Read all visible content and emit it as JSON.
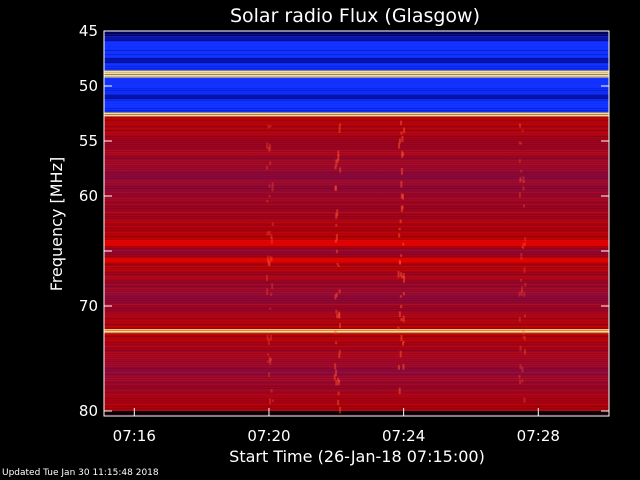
{
  "chart_data": {
    "type": "heatmap",
    "title": "Solar radio Flux (Glasgow)",
    "xlabel": "Start Time (26-Jan-18 07:15:00)",
    "ylabel": "Frequency [MHz]",
    "y_ticks": [
      45,
      50,
      55,
      60,
      65,
      70,
      80
    ],
    "y_tick_labels": [
      "45",
      "50",
      "55",
      "60",
      "",
      "70",
      "80"
    ],
    "x_ticks": [
      "07:16",
      "07:20",
      "07:24",
      "07:28"
    ],
    "x_minutes": [
      16,
      20,
      24,
      28
    ],
    "xlim_minutes": [
      15.1,
      30.1
    ],
    "ylim": [
      45,
      80
    ],
    "colors": {
      "low": "#000080",
      "mid": "#1030ff",
      "high": "#c00000",
      "peak": "#ffe080"
    },
    "bands": [
      {
        "from": 45.0,
        "to": 45.3,
        "level": "dark"
      },
      {
        "from": 45.3,
        "to": 48.5,
        "level": "low"
      },
      {
        "from": 48.5,
        "to": 49.2,
        "level": "peak"
      },
      {
        "from": 49.2,
        "to": 52.4,
        "level": "low"
      },
      {
        "from": 52.4,
        "to": 52.8,
        "level": "peak"
      },
      {
        "from": 52.8,
        "to": 64.0,
        "level": "high"
      },
      {
        "from": 64.0,
        "to": 64.6,
        "level": "intense"
      },
      {
        "from": 64.6,
        "to": 65.6,
        "level": "high"
      },
      {
        "from": 65.6,
        "to": 66.0,
        "level": "intense"
      },
      {
        "from": 66.0,
        "to": 72.2,
        "level": "high"
      },
      {
        "from": 72.2,
        "to": 72.6,
        "level": "peak"
      },
      {
        "from": 72.6,
        "to": 80.0,
        "level": "high"
      }
    ]
  },
  "footer": {
    "updated": "Updated Tue Jan 30 11:15:48 2018"
  }
}
